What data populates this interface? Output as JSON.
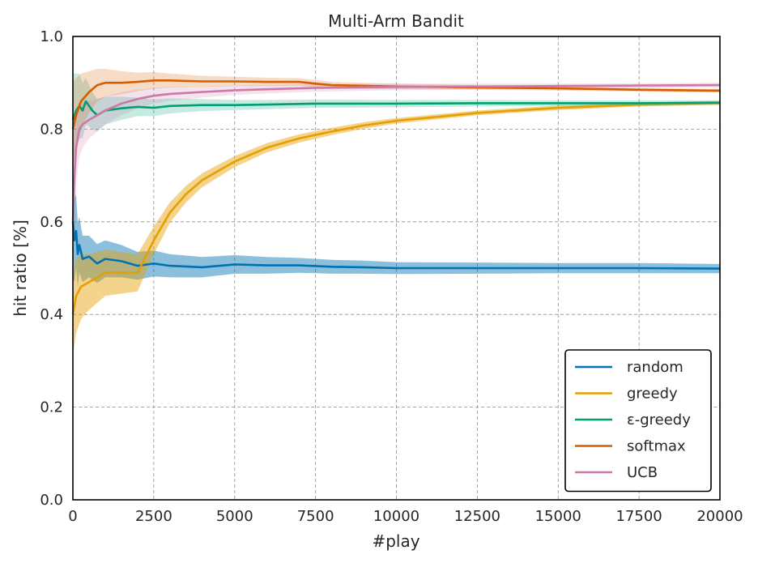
{
  "chart_data": {
    "type": "line",
    "title": "Multi-Arm Bandit",
    "xlabel": "#play",
    "ylabel": "hit ratio [%]",
    "xlim": [
      0,
      20000
    ],
    "ylim": [
      0.0,
      1.0
    ],
    "xticks": [
      0,
      2500,
      5000,
      7500,
      10000,
      12500,
      15000,
      17500,
      20000
    ],
    "yticks": [
      0.0,
      0.2,
      0.4,
      0.6,
      0.8,
      1.0
    ],
    "xtick_labels": [
      "0",
      "2500",
      "5000",
      "7500",
      "10000",
      "12500",
      "15000",
      "17500",
      "20000"
    ],
    "ytick_labels": [
      "0.0",
      "0.2",
      "0.4",
      "0.6",
      "0.8",
      "1.0"
    ],
    "grid": true,
    "legend_position": "bottom-right",
    "series": [
      {
        "name": "random",
        "color": "#0072B2",
        "x": [
          0,
          50,
          100,
          150,
          200,
          300,
          500,
          750,
          1000,
          1500,
          2000,
          2500,
          3000,
          4000,
          5000,
          6000,
          7000,
          8000,
          9000,
          10000,
          12500,
          15000,
          17500,
          20000
        ],
        "y": [
          0.6,
          0.56,
          0.58,
          0.53,
          0.55,
          0.52,
          0.525,
          0.51,
          0.52,
          0.515,
          0.505,
          0.51,
          0.505,
          0.502,
          0.508,
          0.506,
          0.506,
          0.503,
          0.502,
          0.5,
          0.5,
          0.5,
          0.5,
          0.499
        ],
        "band": [
          0.12,
          0.09,
          0.08,
          0.07,
          0.06,
          0.05,
          0.045,
          0.042,
          0.04,
          0.035,
          0.03,
          0.028,
          0.025,
          0.022,
          0.02,
          0.018,
          0.016,
          0.015,
          0.014,
          0.013,
          0.012,
          0.011,
          0.011,
          0.01
        ]
      },
      {
        "name": "greedy",
        "color": "#E69F00",
        "x": [
          0,
          100,
          250,
          500,
          750,
          1000,
          1500,
          2000,
          2500,
          3000,
          3500,
          4000,
          5000,
          6000,
          7000,
          8000,
          9000,
          10000,
          12500,
          15000,
          17500,
          20000
        ],
        "y": [
          0.4,
          0.44,
          0.46,
          0.47,
          0.48,
          0.49,
          0.49,
          0.49,
          0.56,
          0.62,
          0.66,
          0.69,
          0.73,
          0.76,
          0.78,
          0.795,
          0.808,
          0.818,
          0.835,
          0.846,
          0.853,
          0.857
        ],
        "band": [
          0.09,
          0.08,
          0.07,
          0.06,
          0.055,
          0.05,
          0.045,
          0.04,
          0.03,
          0.022,
          0.018,
          0.015,
          0.012,
          0.01,
          0.009,
          0.008,
          0.007,
          0.006,
          0.005,
          0.005,
          0.004,
          0.004
        ]
      },
      {
        "name": "ε-greedy",
        "color": "#009E73",
        "x": [
          0,
          100,
          200,
          300,
          400,
          500,
          600,
          750,
          1000,
          1500,
          2000,
          2500,
          3000,
          4000,
          5000,
          6000,
          7500,
          10000,
          12500,
          15000,
          17500,
          20000
        ],
        "y": [
          0.82,
          0.84,
          0.85,
          0.84,
          0.86,
          0.85,
          0.84,
          0.83,
          0.84,
          0.845,
          0.848,
          0.846,
          0.85,
          0.852,
          0.852,
          0.853,
          0.855,
          0.855,
          0.856,
          0.856,
          0.856,
          0.857
        ],
        "band": [
          0.1,
          0.08,
          0.07,
          0.06,
          0.05,
          0.045,
          0.04,
          0.035,
          0.03,
          0.025,
          0.02,
          0.018,
          0.016,
          0.013,
          0.011,
          0.01,
          0.009,
          0.008,
          0.007,
          0.006,
          0.006,
          0.005
        ]
      },
      {
        "name": "softmax",
        "color": "#D55E00",
        "x": [
          0,
          100,
          250,
          500,
          750,
          1000,
          1500,
          2000,
          2500,
          3000,
          4000,
          5000,
          6000,
          7000,
          7500,
          8000,
          10000,
          12500,
          15000,
          17500,
          20000
        ],
        "y": [
          0.8,
          0.83,
          0.86,
          0.88,
          0.895,
          0.9,
          0.9,
          0.902,
          0.905,
          0.905,
          0.903,
          0.903,
          0.902,
          0.902,
          0.898,
          0.895,
          0.892,
          0.89,
          0.888,
          0.885,
          0.883
        ],
        "band": [
          0.1,
          0.08,
          0.06,
          0.045,
          0.035,
          0.03,
          0.025,
          0.02,
          0.018,
          0.015,
          0.012,
          0.01,
          0.009,
          0.008,
          0.008,
          0.007,
          0.006,
          0.005,
          0.005,
          0.004,
          0.004
        ]
      },
      {
        "name": "UCB",
        "color": "#CC79A7",
        "x": [
          0,
          50,
          100,
          200,
          300,
          500,
          750,
          1000,
          1500,
          2000,
          2500,
          3000,
          4000,
          5000,
          6000,
          7500,
          10000,
          12500,
          15000,
          17500,
          20000
        ],
        "y": [
          0.6,
          0.7,
          0.76,
          0.8,
          0.81,
          0.82,
          0.83,
          0.84,
          0.855,
          0.865,
          0.872,
          0.876,
          0.88,
          0.884,
          0.886,
          0.889,
          0.891,
          0.892,
          0.893,
          0.894,
          0.895
        ],
        "band": [
          0.15,
          0.1,
          0.08,
          0.06,
          0.05,
          0.04,
          0.035,
          0.03,
          0.025,
          0.02,
          0.017,
          0.015,
          0.012,
          0.01,
          0.009,
          0.008,
          0.007,
          0.006,
          0.005,
          0.005,
          0.005
        ]
      }
    ]
  }
}
